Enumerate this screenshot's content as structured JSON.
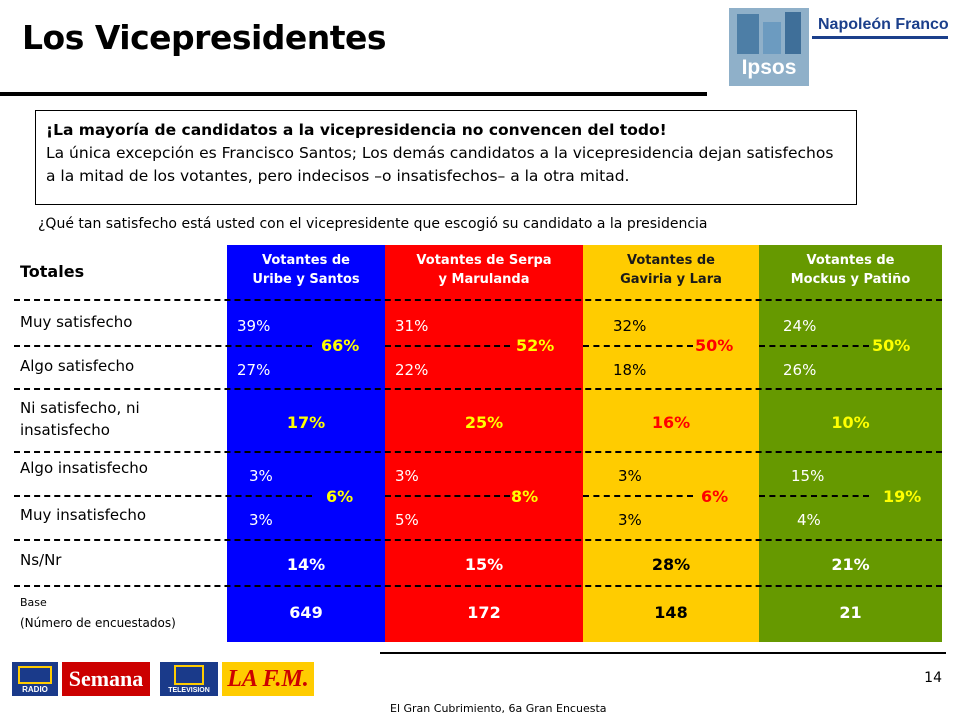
{
  "title": "Los Vicepresidentes",
  "logos": {
    "ipsos": "Ipsos",
    "napoleon_franco": "Napoleón Franco",
    "rcn_radio": "RADIO",
    "semana": "Semana",
    "rcn_tv": "TELEVISION",
    "la_fm": "LA F.M."
  },
  "note": {
    "headline": "¡La mayoría de candidatos a la vicepresidencia no convencen del todo!",
    "body": "La única excepción es Francisco Santos; Los demás candidatos a la vicepresidencia dejan satisfechos a la mitad de los votantes, pero indecisos –o insatisfechos– a la otra mitad."
  },
  "question": "¿Qué tan satisfecho está usted con el vicepresidente que escogió su candidato a la presidencia",
  "table": {
    "totals_label": "Totales",
    "row_labels": {
      "muy_satisfecho": "Muy satisfecho",
      "algo_satisfecho": "Algo satisfecho",
      "ni_line1": "Ni satisfecho, ni",
      "ni_line2": "insatisfecho",
      "algo_insatisfecho": "Algo insatisfecho",
      "muy_insatisfecho": "Muy insatisfecho",
      "nsnr": "Ns/Nr",
      "base": "Base",
      "base_sub": "(Número de encuestados)"
    },
    "columns": [
      {
        "header_l1": "Votantes de",
        "header_l2": "Uribe y Santos",
        "color": "#0000ff",
        "text_color": "#ffffff",
        "muy_satisfecho": "39%",
        "algo_satisfecho": "27%",
        "sat_total": "66%",
        "ni": "17%",
        "algo_insatisfecho": "3%",
        "muy_insatisfecho": "3%",
        "insat_total": "6%",
        "nsnr": "14%",
        "base": "649"
      },
      {
        "header_l1": "Votantes de Serpa",
        "header_l2": "y Marulanda",
        "color": "#ff0000",
        "text_color": "#ffffff",
        "muy_satisfecho": "31%",
        "algo_satisfecho": "22%",
        "sat_total": "52%",
        "ni": "25%",
        "algo_insatisfecho": "3%",
        "muy_insatisfecho": "5%",
        "insat_total": "8%",
        "nsnr": "15%",
        "base": "172"
      },
      {
        "header_l1": "Votantes de",
        "header_l2": "Gaviria y Lara",
        "color": "#ffcc00",
        "text_color": "#000000",
        "muy_satisfecho": "32%",
        "algo_satisfecho": "18%",
        "sat_total": "50%",
        "ni": "16%",
        "algo_insatisfecho": "3%",
        "muy_insatisfecho": "3%",
        "insat_total": "6%",
        "nsnr": "28%",
        "base": "148"
      },
      {
        "header_l1": "Votantes de",
        "header_l2": "Mockus y Patiño",
        "color": "#669900",
        "text_color": "#ffffff",
        "muy_satisfecho": "24%",
        "algo_satisfecho": "26%",
        "sat_total": "50%",
        "ni": "10%",
        "algo_insatisfecho": "15%",
        "muy_insatisfecho": "4%",
        "insat_total": "19%",
        "nsnr": "21%",
        "base": "21"
      }
    ]
  },
  "page_number": "14",
  "footer": "El Gran Cubrimiento, 6a Gran Encuesta"
}
